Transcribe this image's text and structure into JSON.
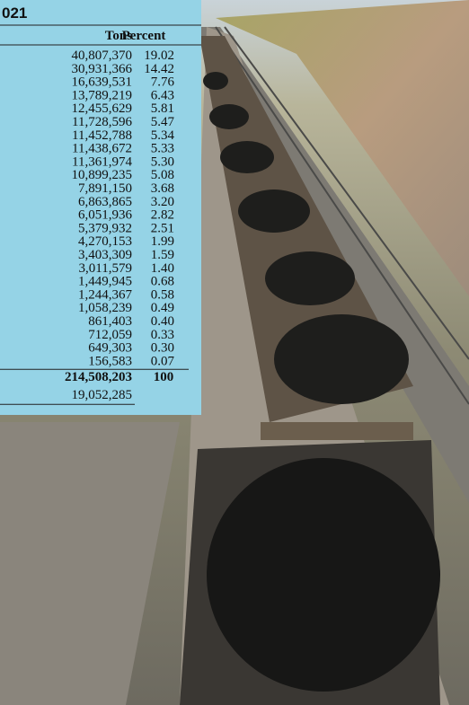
{
  "title": "021",
  "table": {
    "header": [
      "Tons",
      "Percent"
    ],
    "rows": [
      [
        "40,807,370",
        "19.02"
      ],
      [
        "30,931,366",
        "14.42"
      ],
      [
        "16,639,531",
        "7.76"
      ],
      [
        "13,789,219",
        "6.43"
      ],
      [
        "12,455,629",
        "5.81"
      ],
      [
        "11,728,596",
        "5.47"
      ],
      [
        "11,452,788",
        "5.34"
      ],
      [
        "11,438,672",
        "5.33"
      ],
      [
        "11,361,974",
        "5.30"
      ],
      [
        "10,899,235",
        "5.08"
      ],
      [
        "7,891,150",
        "3.68"
      ],
      [
        "6,863,865",
        "3.20"
      ],
      [
        "6,051,936",
        "2.82"
      ],
      [
        "5,379,932",
        "2.51"
      ],
      [
        "4,270,153",
        "1.99"
      ],
      [
        "3,403,309",
        "1.59"
      ],
      [
        "3,011,579",
        "1.40"
      ],
      [
        "1,449,945",
        "0.68"
      ],
      [
        "1,244,367",
        "0.58"
      ],
      [
        "1,058,239",
        "0.49"
      ],
      [
        "861,403",
        "0.40"
      ],
      [
        "712,059",
        "0.33"
      ],
      [
        "649,303",
        "0.30"
      ],
      [
        "156,583",
        "0.07"
      ]
    ],
    "total": [
      "214,508,203",
      "100"
    ],
    "footer": [
      "19,052,285"
    ]
  }
}
